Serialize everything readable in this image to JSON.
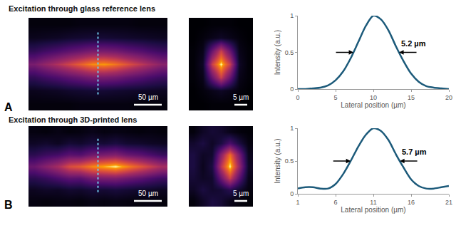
{
  "chart_data": [
    {
      "type": "heatmap",
      "title": "Excitation through glass reference lens",
      "panel": "A",
      "scale_bar": "50 µm",
      "zlim": [
        0,
        1
      ],
      "tick_labels": false,
      "cells": [
        [
          0.02,
          0.02,
          0.02,
          0.02,
          0.03,
          0.03,
          0.03,
          0.03,
          0.03,
          0.02,
          0.02,
          0.02
        ],
        [
          0.06,
          0.07,
          0.08,
          0.1,
          0.11,
          0.12,
          0.12,
          0.11,
          0.1,
          0.09,
          0.08,
          0.07
        ],
        [
          0.22,
          0.27,
          0.31,
          0.36,
          0.4,
          0.45,
          0.45,
          0.43,
          0.38,
          0.34,
          0.29,
          0.25
        ],
        [
          0.45,
          0.54,
          0.63,
          0.72,
          0.81,
          0.9,
          0.92,
          0.86,
          0.77,
          0.68,
          0.59,
          0.5
        ],
        [
          0.22,
          0.27,
          0.31,
          0.36,
          0.4,
          0.45,
          0.45,
          0.43,
          0.38,
          0.34,
          0.29,
          0.25
        ],
        [
          0.06,
          0.07,
          0.08,
          0.1,
          0.11,
          0.12,
          0.12,
          0.11,
          0.1,
          0.09,
          0.08,
          0.07
        ],
        [
          0.02,
          0.02,
          0.02,
          0.02,
          0.03,
          0.03,
          0.03,
          0.03,
          0.03,
          0.02,
          0.02,
          0.02
        ]
      ]
    },
    {
      "type": "heatmap",
      "scale_bar": "5 µm",
      "zlim": [
        0,
        1
      ],
      "tick_labels": false,
      "cells": [
        [
          0,
          0,
          0.01,
          0.01,
          0.01,
          0,
          0
        ],
        [
          0,
          0.02,
          0.05,
          0.08,
          0.05,
          0.02,
          0
        ],
        [
          0.01,
          0.05,
          0.4,
          0.7,
          0.4,
          0.05,
          0.01
        ],
        [
          0.01,
          0.08,
          0.7,
          1,
          0.7,
          0.08,
          0.01
        ],
        [
          0.01,
          0.05,
          0.4,
          0.7,
          0.4,
          0.05,
          0.01
        ],
        [
          0,
          0.02,
          0.05,
          0.08,
          0.05,
          0.02,
          0
        ],
        [
          0,
          0,
          0.01,
          0.01,
          0.01,
          0,
          0
        ]
      ]
    },
    {
      "type": "line",
      "xlabel": "Lateral position (µm)",
      "ylabel": "Intensity (a.u.)",
      "color": "#1c5a7a",
      "x": [
        0,
        1,
        2,
        3,
        4,
        5,
        6,
        7,
        8,
        9,
        10,
        11,
        12,
        13,
        14,
        15,
        16,
        17,
        18,
        19,
        20
      ],
      "values": [
        0,
        0,
        0.01,
        0.02,
        0.05,
        0.12,
        0.24,
        0.42,
        0.64,
        0.86,
        1,
        0.95,
        0.8,
        0.58,
        0.38,
        0.21,
        0.1,
        0.04,
        0.02,
        0.01,
        0
      ],
      "xlim": [
        0,
        20
      ],
      "xticks": [
        0,
        5,
        10,
        15,
        20
      ],
      "ylim": [
        0,
        1
      ],
      "yticks": [
        0,
        0.5,
        1
      ],
      "grid": false,
      "annotations": [
        {
          "text": "5.2 µm"
        }
      ]
    },
    {
      "type": "heatmap",
      "title": "Excitation through 3D-printed lens",
      "panel": "B",
      "scale_bar": "50 µm",
      "zlim": [
        0,
        1
      ],
      "tick_labels": false,
      "cells": [
        [
          0.03,
          0.02,
          0.04,
          0.02,
          0.03,
          0.05,
          0.03,
          0.04,
          0.03,
          0.02,
          0.03,
          0.02
        ],
        [
          0.08,
          0.1,
          0.07,
          0.12,
          0.1,
          0.14,
          0.12,
          0.15,
          0.11,
          0.1,
          0.08,
          0.07
        ],
        [
          0.2,
          0.25,
          0.28,
          0.35,
          0.33,
          0.42,
          0.45,
          0.48,
          0.4,
          0.36,
          0.3,
          0.24
        ],
        [
          0.4,
          0.5,
          0.6,
          0.75,
          0.8,
          0.9,
          0.95,
          1,
          0.9,
          0.8,
          0.7,
          0.6
        ],
        [
          0.2,
          0.24,
          0.3,
          0.36,
          0.35,
          0.44,
          0.46,
          0.47,
          0.42,
          0.37,
          0.31,
          0.26
        ],
        [
          0.07,
          0.09,
          0.08,
          0.11,
          0.1,
          0.13,
          0.12,
          0.14,
          0.12,
          0.1,
          0.09,
          0.07
        ],
        [
          0.03,
          0.02,
          0.03,
          0.03,
          0.02,
          0.04,
          0.03,
          0.04,
          0.03,
          0.02,
          0.03,
          0.02
        ]
      ]
    },
    {
      "type": "heatmap",
      "scale_bar": "5 µm",
      "zlim": [
        0,
        1
      ],
      "tick_labels": false,
      "cells": [
        [
          0.02,
          0.08,
          0.12,
          0.1,
          0.05,
          0.02,
          0.01
        ],
        [
          0.1,
          0.15,
          0.08,
          0.15,
          0.3,
          0.15,
          0.03
        ],
        [
          0.15,
          0.08,
          0.1,
          0.5,
          0.85,
          0.45,
          0.06
        ],
        [
          0.15,
          0.06,
          0.15,
          0.65,
          1,
          0.55,
          0.08
        ],
        [
          0.12,
          0.08,
          0.1,
          0.4,
          0.7,
          0.35,
          0.05
        ],
        [
          0.08,
          0.15,
          0.1,
          0.12,
          0.2,
          0.1,
          0.03
        ],
        [
          0.02,
          0.08,
          0.15,
          0.12,
          0.05,
          0.02,
          0.01
        ]
      ]
    },
    {
      "type": "line",
      "xlabel": "Lateral position (µm)",
      "ylabel": "Intensity (a.u.)",
      "color": "#1c5a7a",
      "x": [
        1,
        2,
        3,
        4,
        5,
        6,
        7,
        8,
        9,
        10,
        11,
        12,
        13,
        14,
        15,
        16,
        17,
        18,
        19,
        20,
        21
      ],
      "values": [
        0.08,
        0.1,
        0.1,
        0.08,
        0.08,
        0.15,
        0.3,
        0.5,
        0.72,
        0.9,
        1,
        0.96,
        0.82,
        0.6,
        0.4,
        0.22,
        0.12,
        0.08,
        0.08,
        0.1,
        0.12
      ],
      "xlim": [
        1,
        21
      ],
      "xticks": [
        1,
        6,
        11,
        16,
        21
      ],
      "ylim": [
        0,
        1
      ],
      "yticks": [
        0,
        0.5,
        1
      ],
      "grid": false,
      "annotations": [
        {
          "text": "5.7 µm"
        }
      ]
    }
  ]
}
